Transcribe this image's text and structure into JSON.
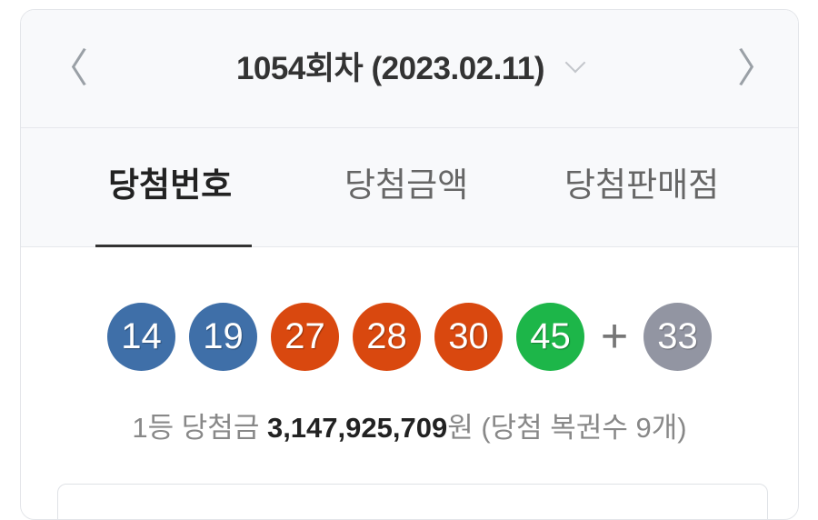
{
  "header": {
    "title": "1054회차 (2023.02.11)",
    "prev_icon": "chevron-left",
    "next_icon": "chevron-right",
    "dropdown_icon": "chevron-down"
  },
  "tabs": [
    {
      "label": "당첨번호",
      "active": true
    },
    {
      "label": "당첨금액",
      "active": false
    },
    {
      "label": "당첨판매점",
      "active": false
    }
  ],
  "numbers": [
    {
      "value": "14",
      "color": "#3f6fa8"
    },
    {
      "value": "19",
      "color": "#3f6fa8"
    },
    {
      "value": "27",
      "color": "#d9480f"
    },
    {
      "value": "28",
      "color": "#d9480f"
    },
    {
      "value": "30",
      "color": "#d9480f"
    },
    {
      "value": "45",
      "color": "#1db649"
    }
  ],
  "plus": "+",
  "bonus": {
    "value": "33",
    "color": "#9295a2"
  },
  "prize": {
    "prefix": "1등 당첨금 ",
    "amount": "3,147,925,709",
    "suffix": "원 (당첨 복권수 9개)"
  }
}
